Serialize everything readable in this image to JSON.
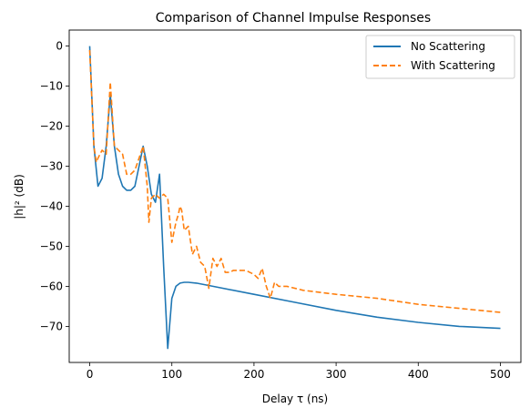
{
  "chart_data": {
    "type": "line",
    "title": "Comparison of Channel Impulse Responses",
    "xlabel": "Delay τ (ns)",
    "ylabel": "|h|² (dB)",
    "xlim": [
      -25,
      525
    ],
    "ylim": [
      -79,
      4
    ],
    "xticks": [
      0,
      100,
      200,
      300,
      400,
      500
    ],
    "yticks": [
      0,
      -10,
      -20,
      -30,
      -40,
      -50,
      -60,
      -70
    ],
    "xtick_labels": [
      "0",
      "100",
      "200",
      "300",
      "400",
      "500"
    ],
    "ytick_labels": [
      "0",
      "−10",
      "−20",
      "−30",
      "−40",
      "−50",
      "−60",
      "−70"
    ],
    "grid": false,
    "legend": {
      "placement": "top-right",
      "items": [
        "No Scattering",
        "With Scattering"
      ]
    },
    "colors": {
      "series1": "#1f77b4",
      "series2": "#ff7f0e"
    },
    "series": [
      {
        "name": "No Scattering",
        "style": "solid",
        "x": [
          0,
          5,
          10,
          15,
          20,
          25,
          30,
          35,
          40,
          45,
          50,
          55,
          60,
          65,
          70,
          75,
          80,
          85,
          90,
          95,
          100,
          105,
          110,
          115,
          120,
          130,
          150,
          200,
          250,
          300,
          350,
          400,
          450,
          500
        ],
        "y": [
          0,
          -25,
          -35,
          -33,
          -25,
          -12,
          -25,
          -32,
          -35,
          -36,
          -36,
          -35,
          -30,
          -25,
          -30,
          -37,
          -39,
          -32,
          -55,
          -75.5,
          -63,
          -60,
          -59.2,
          -59,
          -59,
          -59.2,
          -60,
          -62,
          -64,
          -66,
          -67.7,
          -69,
          -70,
          -70.5
        ]
      },
      {
        "name": "With Scattering",
        "style": "dashed",
        "x": [
          0,
          5,
          8,
          10,
          15,
          20,
          25,
          30,
          35,
          40,
          45,
          50,
          55,
          60,
          65,
          70,
          72,
          75,
          80,
          85,
          90,
          95,
          100,
          105,
          108,
          110,
          112,
          115,
          120,
          125,
          130,
          135,
          140,
          145,
          150,
          155,
          160,
          165,
          170,
          175,
          180,
          190,
          200,
          205,
          210,
          215,
          220,
          225,
          230,
          240,
          260,
          300,
          350,
          400,
          450,
          500
        ],
        "y": [
          -1,
          -25,
          -29,
          -28,
          -26,
          -27,
          -9,
          -25,
          -26,
          -27,
          -32,
          -32,
          -31,
          -28,
          -25,
          -35,
          -44,
          -38,
          -37,
          -38,
          -37,
          -38,
          -49,
          -44,
          -42,
          -40,
          -41,
          -46,
          -45,
          -52,
          -50,
          -54,
          -55,
          -60.5,
          -53,
          -55,
          -53,
          -56.5,
          -56.5,
          -56,
          -56,
          -56,
          -57,
          -58,
          -55.5,
          -60,
          -63,
          -59,
          -60,
          -60,
          -61,
          -62,
          -63,
          -64.5,
          -65.5,
          -66.5
        ]
      }
    ]
  }
}
